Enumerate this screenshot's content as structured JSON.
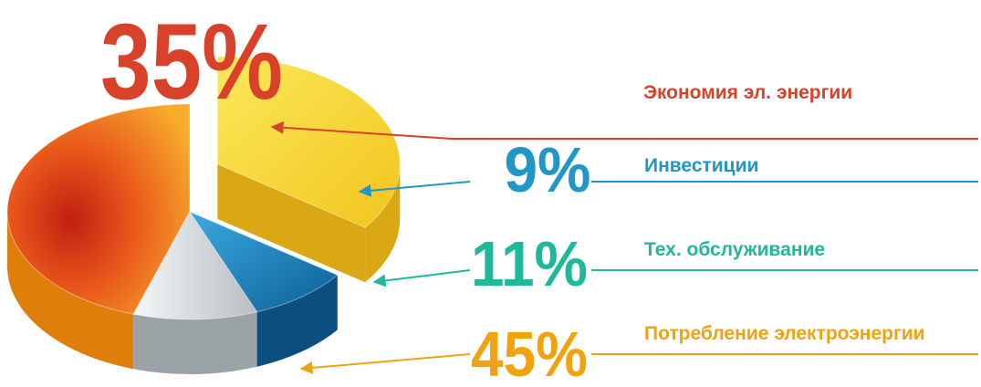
{
  "chart_data": {
    "type": "pie",
    "title": "",
    "series": [
      {
        "values": [
          35,
          9,
          11,
          45
        ],
        "labels": [
          "Экономия эл. энергии",
          "Инвестиции",
          "Тех. обслуживание",
          "Потребление электроэнергии"
        ],
        "percent_labels": [
          "35%",
          "9%",
          "11%",
          "45%"
        ]
      }
    ],
    "exploded_slice": "Экономия эл. энергии",
    "legend": "right",
    "colors": [
      "#d8412a",
      "#1f97c7",
      "#1fb89a",
      "#f0a20f"
    ],
    "slice_fill_colors": [
      "#f4d82c",
      "#1e7fb5",
      "#d7dcdf",
      "#ea6b16"
    ]
  }
}
